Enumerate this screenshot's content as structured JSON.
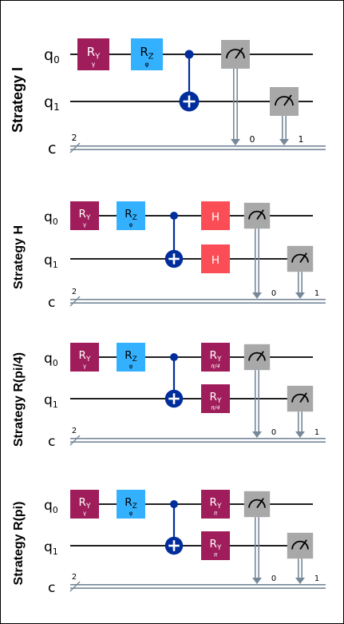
{
  "colors": {
    "ry": "#9f1d5a",
    "rz": "#33b1ff",
    "h": "#fa4d56",
    "cx": "#002d9c",
    "measure": "#a8a8a8",
    "classical": "#778899",
    "wire": "#000000"
  },
  "panels": [
    {
      "label": "Strategy I",
      "q0": "q",
      "q0_sub": "0",
      "q1": "q",
      "q1_sub": "1",
      "creg": "c",
      "creg_size": "2",
      "gates": [
        {
          "kind": "ry",
          "main": "R",
          "main_sub": "Y",
          "param": "γ"
        },
        {
          "kind": "rz",
          "main": "R",
          "main_sub": "Z",
          "param": "φ"
        }
      ],
      "extra": [],
      "meas_bits": [
        "0",
        "1"
      ]
    },
    {
      "label": "Strategy H",
      "q0": "q",
      "q0_sub": "0",
      "q1": "q",
      "q1_sub": "1",
      "creg": "c",
      "creg_size": "2",
      "gates": [
        {
          "kind": "ry",
          "main": "R",
          "main_sub": "Y",
          "param": "γ"
        },
        {
          "kind": "rz",
          "main": "R",
          "main_sub": "Z",
          "param": "φ"
        }
      ],
      "extra": [
        {
          "kind": "h",
          "main": "H",
          "main_sub": "",
          "param": ""
        },
        {
          "kind": "h",
          "main": "H",
          "main_sub": "",
          "param": ""
        }
      ],
      "meas_bits": [
        "0",
        "1"
      ]
    },
    {
      "label": "Strategy R(pi/4)",
      "q0": "q",
      "q0_sub": "0",
      "q1": "q",
      "q1_sub": "1",
      "creg": "c",
      "creg_size": "2",
      "gates": [
        {
          "kind": "ry",
          "main": "R",
          "main_sub": "Y",
          "param": "γ"
        },
        {
          "kind": "rz",
          "main": "R",
          "main_sub": "Z",
          "param": "φ"
        }
      ],
      "extra": [
        {
          "kind": "ry",
          "main": "R",
          "main_sub": "Y",
          "param": "π/4"
        },
        {
          "kind": "ry",
          "main": "R",
          "main_sub": "Y",
          "param": "π/4"
        }
      ],
      "meas_bits": [
        "0",
        "1"
      ]
    },
    {
      "label": "Strategy R(pi)",
      "q0": "q",
      "q0_sub": "0",
      "q1": "q",
      "q1_sub": "1",
      "creg": "c",
      "creg_size": "2",
      "gates": [
        {
          "kind": "ry",
          "main": "R",
          "main_sub": "Y",
          "param": "γ"
        },
        {
          "kind": "rz",
          "main": "R",
          "main_sub": "Z",
          "param": "φ"
        }
      ],
      "extra": [
        {
          "kind": "ry",
          "main": "R",
          "main_sub": "Y",
          "param": "π"
        },
        {
          "kind": "ry",
          "main": "R",
          "main_sub": "Y",
          "param": "π"
        }
      ],
      "meas_bits": [
        "0",
        "1"
      ]
    }
  ]
}
